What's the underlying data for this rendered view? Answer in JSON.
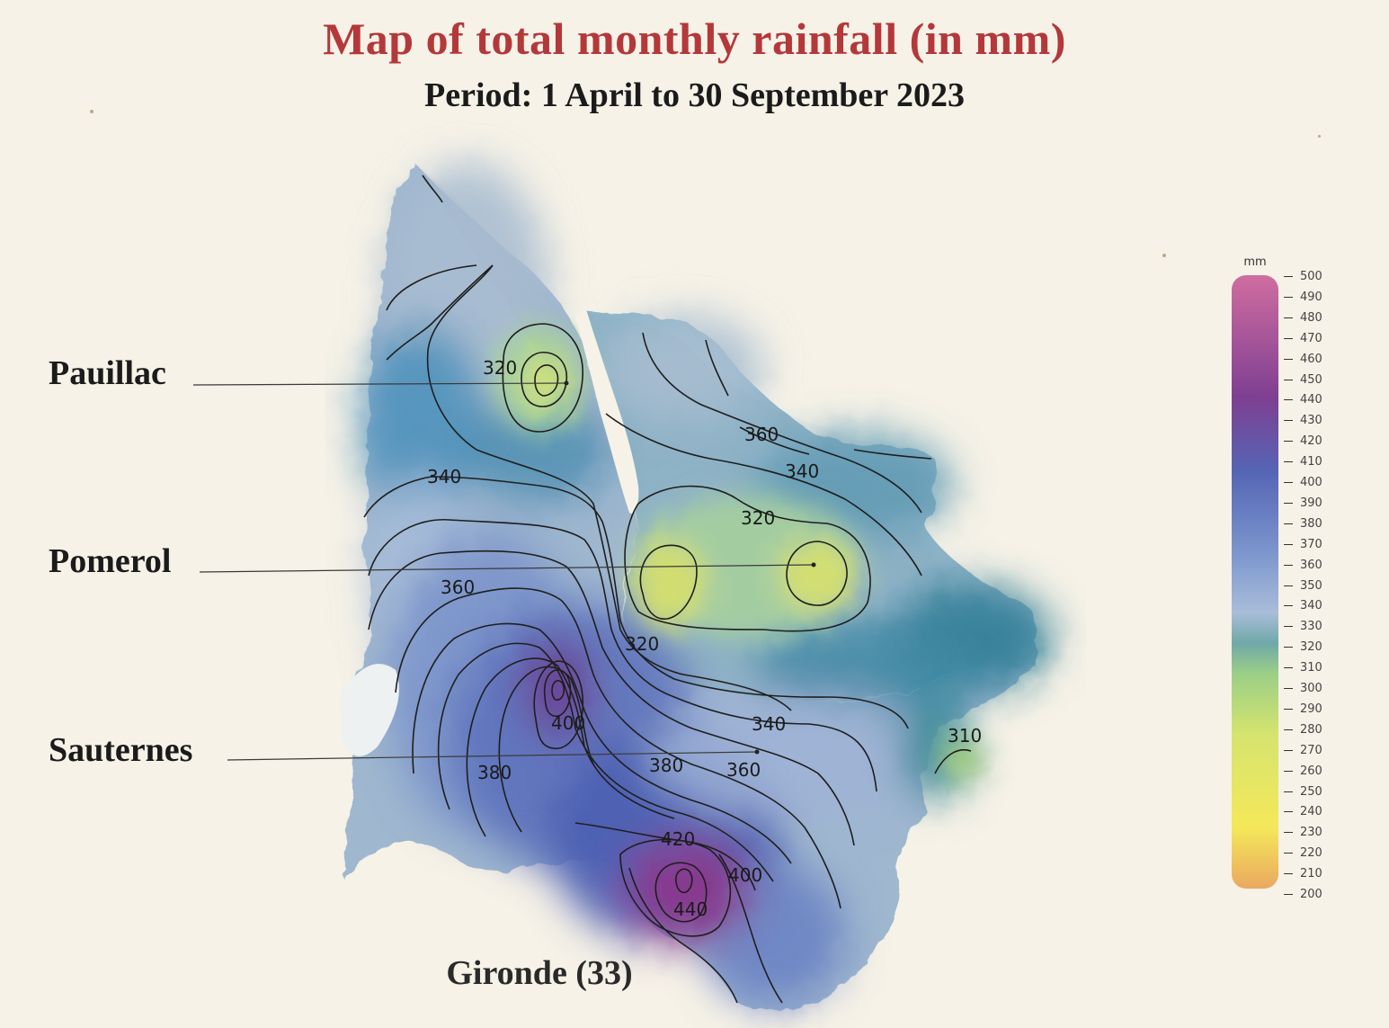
{
  "title": "Map of total monthly rainfall (in mm)",
  "subtitle": "Period: 1 April to 30 September 2023",
  "places": {
    "pauillac": "Pauillac",
    "pomerol": "Pomerol",
    "sauternes": "Sauternes"
  },
  "map_caption": "Gironde (33)",
  "contour_labels": {
    "c320_a": "320",
    "c340_a": "340",
    "c360_a": "360",
    "c360_b": "360",
    "c340_b": "340",
    "c320_b": "320",
    "c320_c": "320",
    "c400_a": "400",
    "c340_c": "340",
    "c380_a": "380",
    "c380_b": "380",
    "c360_c": "360",
    "c310_a": "310",
    "c420_a": "420",
    "c400_b": "400",
    "c440_a": "440"
  },
  "legend": {
    "unit": "mm",
    "ticks": [
      "500",
      "490",
      "480",
      "470",
      "460",
      "450",
      "440",
      "430",
      "420",
      "410",
      "400",
      "390",
      "380",
      "370",
      "360",
      "350",
      "340",
      "330",
      "320",
      "310",
      "300",
      "290",
      "280",
      "270",
      "260",
      "250",
      "240",
      "230",
      "220",
      "210",
      "200"
    ],
    "colors": {
      "top": "#d06da0",
      "purple": "#7e3f92",
      "blue_dark": "#5565b5",
      "blue_mid": "#7a95cd",
      "blue_light": "#a9bdd9",
      "teal": "#6fa9a8",
      "green": "#9bcf86",
      "yellow_green": "#d6e46e",
      "yellow": "#f4e85a",
      "orange": "#eaa860"
    }
  },
  "map_colors": {
    "light_blue_grey": "#a8bbcf",
    "teal_blue": "#4b8fb7",
    "deep_teal": "#2f7f95",
    "mid_blue": "#7690c7",
    "dark_blue": "#4c5fb0",
    "violet": "#7b3b8e",
    "magenta": "#a44a8c",
    "green_yellow": "#c7d86e",
    "pale_green": "#a6d1a1"
  }
}
